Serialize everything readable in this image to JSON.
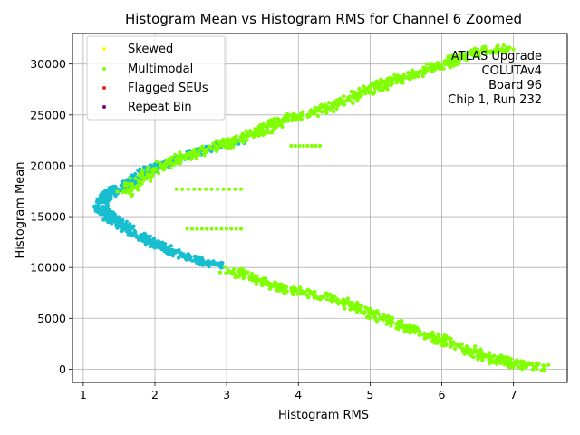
{
  "chart_data": {
    "type": "scatter",
    "title": "Histogram Mean vs Histogram RMS for Channel 6 Zoomed",
    "xlabel": "Histogram RMS",
    "ylabel": "Histogram Mean",
    "xlim": [
      0.85,
      7.75
    ],
    "ylim": [
      -1300,
      33000
    ],
    "xticks": [
      1,
      2,
      3,
      4,
      5,
      6,
      7
    ],
    "yticks": [
      0,
      5000,
      10000,
      15000,
      20000,
      25000,
      30000
    ],
    "grid": true,
    "legend_position": "upper-left",
    "annotation": [
      "ATLAS Upgrade",
      "COLUTAv4",
      "Board 96",
      "Chip 1, Run 232"
    ],
    "legend": [
      {
        "label": "Skewed",
        "color": "#ffff00"
      },
      {
        "label": "Multimodal",
        "color": "#7fff00"
      },
      {
        "label": "Flagged SEUs",
        "color": "#e8242f"
      },
      {
        "label": "Repeat Bin",
        "color": "#7f007f"
      }
    ],
    "series": [
      {
        "color": "#17becf",
        "band": [
          [
            1.25,
            16200
          ],
          [
            1.3,
            16900
          ],
          [
            1.45,
            17600
          ],
          [
            1.6,
            18200
          ],
          [
            1.75,
            18900
          ],
          [
            1.9,
            19500
          ],
          [
            2.1,
            20100
          ],
          [
            2.35,
            20800
          ],
          [
            2.6,
            21400
          ],
          [
            2.9,
            22000
          ],
          [
            3.2,
            22500
          ],
          [
            2.9,
            10200
          ],
          [
            2.6,
            10700
          ],
          [
            2.35,
            11300
          ],
          [
            2.1,
            12000
          ],
          [
            1.9,
            12700
          ],
          [
            1.7,
            13400
          ],
          [
            1.55,
            14200
          ],
          [
            1.4,
            14800
          ],
          [
            1.3,
            15400
          ],
          [
            1.25,
            15900
          ]
        ],
        "spread": [
          0.1,
          250
        ],
        "density": 40
      },
      {
        "name": "Multimodal",
        "color": "#7fff00",
        "band": [
          [
            1.55,
            17200
          ],
          [
            1.9,
            19300
          ],
          [
            2.3,
            20700
          ],
          [
            2.8,
            21800
          ],
          [
            3.2,
            22700
          ],
          [
            3.5,
            23500
          ],
          [
            3.8,
            24500
          ],
          [
            4.2,
            25200
          ],
          [
            4.6,
            26200
          ],
          [
            5.0,
            27500
          ],
          [
            5.3,
            28300
          ],
          [
            5.7,
            29200
          ],
          [
            6.1,
            30200
          ],
          [
            6.5,
            31200
          ],
          [
            6.9,
            31600
          ],
          [
            3.0,
            9800
          ],
          [
            3.4,
            8900
          ],
          [
            3.8,
            7900
          ],
          [
            4.3,
            7200
          ],
          [
            4.8,
            6200
          ],
          [
            5.1,
            5200
          ],
          [
            5.5,
            4100
          ],
          [
            5.9,
            3100
          ],
          [
            6.3,
            2100
          ],
          [
            6.6,
            1200
          ],
          [
            7.0,
            500
          ],
          [
            7.4,
            200
          ]
        ],
        "spread": [
          0.12,
          350
        ],
        "density": 50
      }
    ],
    "rows": [
      {
        "y": 21950,
        "x_start": 3.9,
        "x_end": 4.3,
        "count": 8
      },
      {
        "y": 17700,
        "x_start": 2.3,
        "x_end": 3.2,
        "count": 12
      },
      {
        "y": 13800,
        "x_start": 2.45,
        "x_end": 3.2,
        "count": 12
      }
    ]
  }
}
